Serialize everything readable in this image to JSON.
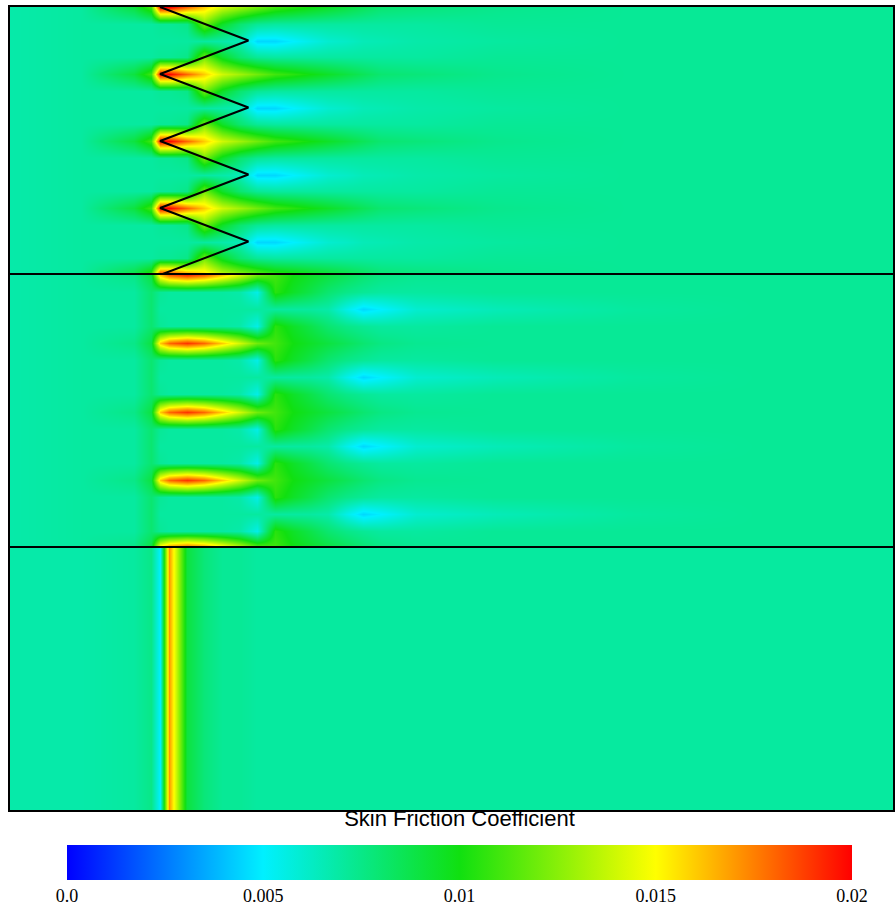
{
  "chart_data": {
    "type": "heatmap",
    "tick_labels": false,
    "xlim": [
      0,
      100
    ],
    "x": [
      0,
      8,
      14,
      16,
      17,
      18,
      20,
      22,
      24,
      26,
      28,
      30,
      32,
      34,
      36,
      38,
      40,
      42,
      46,
      55,
      70,
      85,
      100
    ],
    "colorbar": {
      "title": "Skin Friction Coefficient",
      "range": [
        0,
        0.02
      ],
      "ticks": [
        {
          "value": 0,
          "label": "0.0"
        },
        0.005,
        0.01,
        0.015,
        0.02
      ]
    },
    "panels": [
      {
        "ylim": [
          0,
          16
        ],
        "y": [
          0,
          1,
          2,
          3,
          4,
          5,
          6,
          7,
          8,
          9,
          10,
          11,
          12,
          13,
          14,
          15,
          16
        ],
        "outline": {
          "x": [
            17,
            27,
            17,
            27,
            17,
            27,
            17,
            27,
            17
          ],
          "y": [
            0,
            2,
            4,
            6,
            8,
            10,
            12,
            14,
            16
          ]
        },
        "z": [
          [
            0.0068,
            0.007,
            0.009,
            0.011,
            0.02,
            0.02,
            0.018,
            0.016,
            0.014,
            0.013,
            0.012,
            0.011,
            0.0105,
            0.01,
            0.0095,
            0.009,
            0.0085,
            0.008,
            0.0078,
            0.0074,
            0.0072,
            0.0072,
            0.0072
          ],
          [
            0.0068,
            0.007,
            0.007,
            0.007,
            0.0072,
            0.0072,
            0.0075,
            0.012,
            0.0095,
            0.008,
            0.0072,
            0.007,
            0.007,
            0.007,
            0.007,
            0.007,
            0.007,
            0.007,
            0.007,
            0.0072,
            0.0072,
            0.0072,
            0.0072
          ],
          [
            0.0068,
            0.007,
            0.007,
            0.007,
            0.007,
            0.007,
            0.007,
            0.007,
            0.0068,
            0.0065,
            0.0045,
            0.0045,
            0.005,
            0.0055,
            0.006,
            0.0062,
            0.0065,
            0.0066,
            0.0068,
            0.007,
            0.0072,
            0.0072,
            0.0072
          ],
          [
            0.0068,
            0.007,
            0.007,
            0.007,
            0.0072,
            0.0072,
            0.0075,
            0.012,
            0.0095,
            0.008,
            0.0072,
            0.007,
            0.007,
            0.007,
            0.007,
            0.007,
            0.007,
            0.007,
            0.007,
            0.0072,
            0.0072,
            0.0072,
            0.0072
          ],
          [
            0.0068,
            0.007,
            0.009,
            0.011,
            0.02,
            0.02,
            0.018,
            0.016,
            0.014,
            0.013,
            0.012,
            0.011,
            0.0105,
            0.01,
            0.0095,
            0.009,
            0.0085,
            0.008,
            0.0078,
            0.0074,
            0.0072,
            0.0072,
            0.0072
          ],
          [
            0.0068,
            0.007,
            0.007,
            0.007,
            0.0072,
            0.0072,
            0.0075,
            0.012,
            0.0095,
            0.008,
            0.0072,
            0.007,
            0.007,
            0.007,
            0.007,
            0.007,
            0.007,
            0.007,
            0.007,
            0.0072,
            0.0072,
            0.0072,
            0.0072
          ],
          [
            0.0068,
            0.007,
            0.007,
            0.007,
            0.007,
            0.007,
            0.007,
            0.007,
            0.0068,
            0.0065,
            0.0045,
            0.0045,
            0.005,
            0.0055,
            0.006,
            0.0062,
            0.0065,
            0.0066,
            0.0068,
            0.007,
            0.0072,
            0.0072,
            0.0072
          ],
          [
            0.0068,
            0.007,
            0.007,
            0.007,
            0.0072,
            0.0072,
            0.0075,
            0.012,
            0.0095,
            0.008,
            0.0072,
            0.007,
            0.007,
            0.007,
            0.007,
            0.007,
            0.007,
            0.007,
            0.007,
            0.0072,
            0.0072,
            0.0072,
            0.0072
          ],
          [
            0.0068,
            0.007,
            0.009,
            0.011,
            0.02,
            0.02,
            0.018,
            0.016,
            0.014,
            0.013,
            0.012,
            0.011,
            0.0105,
            0.01,
            0.0095,
            0.009,
            0.0085,
            0.008,
            0.0078,
            0.0074,
            0.0072,
            0.0072,
            0.0072
          ],
          [
            0.0068,
            0.007,
            0.007,
            0.007,
            0.0072,
            0.0072,
            0.0075,
            0.012,
            0.0095,
            0.008,
            0.0072,
            0.007,
            0.007,
            0.007,
            0.007,
            0.007,
            0.007,
            0.007,
            0.007,
            0.0072,
            0.0072,
            0.0072,
            0.0072
          ],
          [
            0.0068,
            0.007,
            0.007,
            0.007,
            0.007,
            0.007,
            0.007,
            0.007,
            0.0068,
            0.0065,
            0.0045,
            0.0045,
            0.005,
            0.0055,
            0.006,
            0.0062,
            0.0065,
            0.0066,
            0.0068,
            0.007,
            0.0072,
            0.0072,
            0.0072
          ],
          [
            0.0068,
            0.007,
            0.007,
            0.007,
            0.0072,
            0.0072,
            0.0075,
            0.012,
            0.0095,
            0.008,
            0.0072,
            0.007,
            0.007,
            0.007,
            0.007,
            0.007,
            0.007,
            0.007,
            0.007,
            0.0072,
            0.0072,
            0.0072,
            0.0072
          ],
          [
            0.0068,
            0.007,
            0.009,
            0.011,
            0.02,
            0.02,
            0.018,
            0.016,
            0.014,
            0.013,
            0.012,
            0.011,
            0.0105,
            0.01,
            0.0095,
            0.009,
            0.0085,
            0.008,
            0.0078,
            0.0074,
            0.0072,
            0.0072,
            0.0072
          ],
          [
            0.0068,
            0.007,
            0.007,
            0.007,
            0.0072,
            0.0072,
            0.0075,
            0.012,
            0.0095,
            0.008,
            0.0072,
            0.007,
            0.007,
            0.007,
            0.007,
            0.007,
            0.007,
            0.007,
            0.007,
            0.0072,
            0.0072,
            0.0072,
            0.0072
          ],
          [
            0.0068,
            0.007,
            0.007,
            0.007,
            0.007,
            0.007,
            0.007,
            0.007,
            0.0068,
            0.0065,
            0.0045,
            0.0045,
            0.005,
            0.0055,
            0.006,
            0.0062,
            0.0065,
            0.0066,
            0.0068,
            0.007,
            0.0072,
            0.0072,
            0.0072
          ],
          [
            0.0068,
            0.007,
            0.007,
            0.007,
            0.0072,
            0.0072,
            0.0075,
            0.012,
            0.0095,
            0.008,
            0.0072,
            0.007,
            0.007,
            0.007,
            0.007,
            0.007,
            0.007,
            0.007,
            0.007,
            0.0072,
            0.0072,
            0.0072,
            0.0072
          ],
          [
            0.0068,
            0.007,
            0.009,
            0.011,
            0.02,
            0.02,
            0.018,
            0.016,
            0.014,
            0.013,
            0.012,
            0.011,
            0.0105,
            0.01,
            0.0095,
            0.009,
            0.0085,
            0.008,
            0.0078,
            0.0074,
            0.0072,
            0.0072,
            0.0072
          ]
        ]
      },
      {
        "ylim": [
          0,
          16
        ],
        "y": [
          0,
          1,
          2,
          3,
          4,
          5,
          6,
          7,
          8,
          9,
          10,
          11,
          12,
          13,
          14,
          15,
          16
        ],
        "z": [
          [
            0.0068,
            0.007,
            0.0075,
            0.009,
            0.016,
            0.018,
            0.019,
            0.018,
            0.016,
            0.014,
            0.012,
            0.011,
            0.01,
            0.0095,
            0.009,
            0.0085,
            0.008,
            0.0076,
            0.0073,
            0.0072,
            0.0072,
            0.0072,
            0.0072
          ],
          [
            0.0068,
            0.007,
            0.007,
            0.008,
            0.0072,
            0.007,
            0.007,
            0.007,
            0.007,
            0.0068,
            0.0055,
            0.0105,
            0.0095,
            0.0088,
            0.008,
            0.0075,
            0.0072,
            0.007,
            0.007,
            0.0072,
            0.0072,
            0.0072,
            0.0072
          ],
          [
            0.0068,
            0.007,
            0.007,
            0.008,
            0.007,
            0.007,
            0.007,
            0.007,
            0.007,
            0.007,
            0.007,
            0.007,
            0.007,
            0.007,
            0.0068,
            0.0055,
            0.0045,
            0.005,
            0.006,
            0.0065,
            0.007,
            0.0072,
            0.0072
          ],
          [
            0.0068,
            0.007,
            0.007,
            0.008,
            0.0072,
            0.007,
            0.007,
            0.007,
            0.007,
            0.0068,
            0.0055,
            0.0105,
            0.0095,
            0.0088,
            0.008,
            0.0075,
            0.0072,
            0.007,
            0.007,
            0.0072,
            0.0072,
            0.0072,
            0.0072
          ],
          [
            0.0068,
            0.007,
            0.0075,
            0.009,
            0.016,
            0.018,
            0.019,
            0.018,
            0.016,
            0.014,
            0.012,
            0.011,
            0.01,
            0.0095,
            0.009,
            0.0085,
            0.008,
            0.0076,
            0.0073,
            0.0072,
            0.0072,
            0.0072,
            0.0072
          ],
          [
            0.0068,
            0.007,
            0.007,
            0.008,
            0.0072,
            0.007,
            0.007,
            0.007,
            0.007,
            0.0068,
            0.0055,
            0.0105,
            0.0095,
            0.0088,
            0.008,
            0.0075,
            0.0072,
            0.007,
            0.007,
            0.0072,
            0.0072,
            0.0072,
            0.0072
          ],
          [
            0.0068,
            0.007,
            0.007,
            0.008,
            0.007,
            0.007,
            0.007,
            0.007,
            0.007,
            0.007,
            0.007,
            0.007,
            0.007,
            0.007,
            0.0068,
            0.0055,
            0.0045,
            0.005,
            0.006,
            0.0065,
            0.007,
            0.0072,
            0.0072
          ],
          [
            0.0068,
            0.007,
            0.007,
            0.008,
            0.0072,
            0.007,
            0.007,
            0.007,
            0.007,
            0.0068,
            0.0055,
            0.0105,
            0.0095,
            0.0088,
            0.008,
            0.0075,
            0.0072,
            0.007,
            0.007,
            0.0072,
            0.0072,
            0.0072,
            0.0072
          ],
          [
            0.0068,
            0.007,
            0.0075,
            0.009,
            0.016,
            0.018,
            0.019,
            0.018,
            0.016,
            0.014,
            0.012,
            0.011,
            0.01,
            0.0095,
            0.009,
            0.0085,
            0.008,
            0.0076,
            0.0073,
            0.0072,
            0.0072,
            0.0072,
            0.0072
          ],
          [
            0.0068,
            0.007,
            0.007,
            0.008,
            0.0072,
            0.007,
            0.007,
            0.007,
            0.007,
            0.0068,
            0.0055,
            0.0105,
            0.0095,
            0.0088,
            0.008,
            0.0075,
            0.0072,
            0.007,
            0.007,
            0.0072,
            0.0072,
            0.0072,
            0.0072
          ],
          [
            0.0068,
            0.007,
            0.007,
            0.008,
            0.007,
            0.007,
            0.007,
            0.007,
            0.007,
            0.007,
            0.007,
            0.007,
            0.007,
            0.007,
            0.0068,
            0.0055,
            0.0045,
            0.005,
            0.006,
            0.0065,
            0.007,
            0.0072,
            0.0072
          ],
          [
            0.0068,
            0.007,
            0.007,
            0.008,
            0.0072,
            0.007,
            0.007,
            0.007,
            0.007,
            0.0068,
            0.0055,
            0.0105,
            0.0095,
            0.0088,
            0.008,
            0.0075,
            0.0072,
            0.007,
            0.007,
            0.0072,
            0.0072,
            0.0072,
            0.0072
          ],
          [
            0.0068,
            0.007,
            0.0075,
            0.009,
            0.016,
            0.018,
            0.019,
            0.018,
            0.016,
            0.014,
            0.012,
            0.011,
            0.01,
            0.0095,
            0.009,
            0.0085,
            0.008,
            0.0076,
            0.0073,
            0.0072,
            0.0072,
            0.0072,
            0.0072
          ],
          [
            0.0068,
            0.007,
            0.007,
            0.008,
            0.0072,
            0.007,
            0.007,
            0.007,
            0.007,
            0.0068,
            0.0055,
            0.0105,
            0.0095,
            0.0088,
            0.008,
            0.0075,
            0.0072,
            0.007,
            0.007,
            0.0072,
            0.0072,
            0.0072,
            0.0072
          ],
          [
            0.0068,
            0.007,
            0.007,
            0.008,
            0.007,
            0.007,
            0.007,
            0.007,
            0.007,
            0.007,
            0.007,
            0.007,
            0.007,
            0.007,
            0.0068,
            0.0055,
            0.0045,
            0.005,
            0.006,
            0.0065,
            0.007,
            0.0072,
            0.0072
          ],
          [
            0.0068,
            0.007,
            0.007,
            0.008,
            0.0072,
            0.007,
            0.007,
            0.007,
            0.007,
            0.0068,
            0.0055,
            0.0105,
            0.0095,
            0.0088,
            0.008,
            0.0075,
            0.0072,
            0.007,
            0.007,
            0.0072,
            0.0072,
            0.0072,
            0.0072
          ],
          [
            0.0068,
            0.007,
            0.0075,
            0.009,
            0.016,
            0.018,
            0.019,
            0.018,
            0.016,
            0.014,
            0.012,
            0.011,
            0.01,
            0.0095,
            0.009,
            0.0085,
            0.008,
            0.0076,
            0.0073,
            0.0072,
            0.0072,
            0.0072,
            0.0072
          ]
        ]
      },
      {
        "ylim": [
          0,
          16
        ],
        "y": [
          0,
          8,
          16
        ],
        "z": [
          [
            0.0068,
            0.0068,
            0.007,
            0.0075,
            0.005,
            0.017,
            0.009,
            0.0078,
            0.0072,
            0.0072,
            0.007,
            0.007,
            0.007,
            0.007,
            0.007,
            0.007,
            0.007,
            0.007,
            0.007,
            0.007,
            0.007,
            0.007,
            0.007
          ],
          [
            0.0068,
            0.0068,
            0.007,
            0.0075,
            0.005,
            0.017,
            0.009,
            0.0078,
            0.0072,
            0.0072,
            0.007,
            0.007,
            0.007,
            0.007,
            0.007,
            0.007,
            0.007,
            0.007,
            0.007,
            0.007,
            0.007,
            0.007,
            0.007
          ],
          [
            0.0068,
            0.0068,
            0.007,
            0.0075,
            0.005,
            0.017,
            0.009,
            0.0078,
            0.0072,
            0.0072,
            0.007,
            0.007,
            0.007,
            0.007,
            0.007,
            0.007,
            0.007,
            0.007,
            0.007,
            0.007,
            0.007,
            0.007,
            0.007
          ]
        ]
      }
    ]
  }
}
